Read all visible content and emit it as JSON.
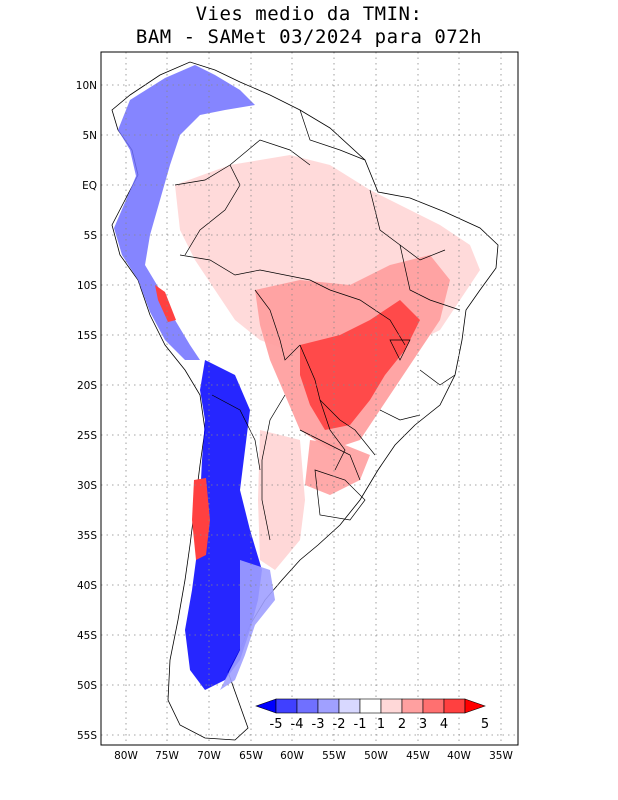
{
  "title_line1": "Vies medio da TMIN:",
  "title_line2": "BAM - SAMet 03/2024  para 072h",
  "map": {
    "lon_ticks": [
      "80W",
      "75W",
      "70W",
      "65W",
      "60W",
      "55W",
      "50W",
      "45W",
      "40W",
      "35W"
    ],
    "lat_ticks": [
      "10N",
      "5N",
      "EQ",
      "5S",
      "10S",
      "15S",
      "20S",
      "25S",
      "30S",
      "35S",
      "40S",
      "45S",
      "50S",
      "55S"
    ]
  },
  "colorbar": {
    "labels": [
      "-5",
      "-4",
      "-3",
      "-2",
      "-1",
      "1",
      "2",
      "3",
      "4",
      "5"
    ],
    "colors": [
      "#0000ff",
      "#4040ff",
      "#7070ff",
      "#a0a0ff",
      "#d8d8ff",
      "#ffffff",
      "#ffd8d8",
      "#ffa0a0",
      "#ff7070",
      "#ff4040",
      "#ff0000"
    ]
  }
}
